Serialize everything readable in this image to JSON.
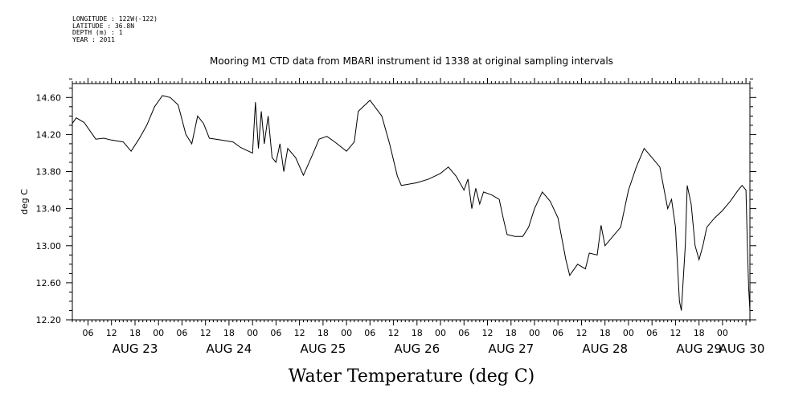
{
  "header": {
    "meta_lines": [
      "LONGITUDE : 122W(-122)",
      "LATITUDE : 36.8N",
      "DEPTH (m) : 1",
      "YEAR : 2011"
    ]
  },
  "chart_data": {
    "type": "line",
    "title": "Mooring M1 CTD data from MBARI instrument id 1338 at original sampling intervals",
    "xlabel": "Water Temperature (deg C)",
    "ylabel": "deg C",
    "xlim": [
      "2011-08-22T20:00",
      "2011-08-30T01:00"
    ],
    "ylim": [
      12.2,
      14.75
    ],
    "y_ticks": [
      "12.20",
      "12.60",
      "13.00",
      "13.40",
      "13.80",
      "14.20",
      "14.60"
    ],
    "x_hour_ticks": [
      "06",
      "12",
      "18",
      "00",
      "06",
      "12",
      "18",
      "00",
      "06",
      "12",
      "18",
      "00",
      "06",
      "12",
      "18",
      "00",
      "06",
      "12",
      "18",
      "00",
      "06",
      "12",
      "18",
      "00",
      "06",
      "12",
      "18",
      "00"
    ],
    "x_day_labels": [
      "AUG 23",
      "AUG 24",
      "AUG 25",
      "AUG 26",
      "AUG 27",
      "AUG 28",
      "AUG 29",
      "AUG 30"
    ],
    "grid": false,
    "series": [
      {
        "color": "#000000",
        "points": [
          [
            "2011-08-22T20:00",
            14.32
          ],
          [
            "2011-08-22T21:00",
            14.38
          ],
          [
            "2011-08-22T23:00",
            14.33
          ],
          [
            "2011-08-23T02:00",
            14.15
          ],
          [
            "2011-08-23T04:00",
            14.16
          ],
          [
            "2011-08-23T06:00",
            14.14
          ],
          [
            "2011-08-23T09:00",
            14.12
          ],
          [
            "2011-08-23T11:00",
            14.02
          ],
          [
            "2011-08-23T13:00",
            14.15
          ],
          [
            "2011-08-23T15:00",
            14.3
          ],
          [
            "2011-08-23T17:00",
            14.5
          ],
          [
            "2011-08-23T19:00",
            14.62
          ],
          [
            "2011-08-23T21:00",
            14.6
          ],
          [
            "2011-08-23T23:00",
            14.52
          ],
          [
            "2011-08-24T01:00",
            14.2
          ],
          [
            "2011-08-24T02:30",
            14.1
          ],
          [
            "2011-08-24T04:00",
            14.4
          ],
          [
            "2011-08-24T05:30",
            14.32
          ],
          [
            "2011-08-24T07:00",
            14.16
          ],
          [
            "2011-08-24T10:00",
            14.14
          ],
          [
            "2011-08-24T13:00",
            14.12
          ],
          [
            "2011-08-24T15:00",
            14.06
          ],
          [
            "2011-08-24T17:00",
            14.02
          ],
          [
            "2011-08-24T18:00",
            14.0
          ],
          [
            "2011-08-24T18:45",
            14.55
          ],
          [
            "2011-08-24T19:30",
            14.05
          ],
          [
            "2011-08-24T20:15",
            14.45
          ],
          [
            "2011-08-24T21:00",
            14.1
          ],
          [
            "2011-08-24T22:00",
            14.4
          ],
          [
            "2011-08-24T23:00",
            13.95
          ],
          [
            "2011-08-25T00:00",
            13.9
          ],
          [
            "2011-08-25T01:00",
            14.1
          ],
          [
            "2011-08-25T02:00",
            13.8
          ],
          [
            "2011-08-25T03:00",
            14.05
          ],
          [
            "2011-08-25T05:00",
            13.95
          ],
          [
            "2011-08-25T07:00",
            13.76
          ],
          [
            "2011-08-25T09:00",
            13.95
          ],
          [
            "2011-08-25T11:00",
            14.15
          ],
          [
            "2011-08-25T13:00",
            14.18
          ],
          [
            "2011-08-25T15:00",
            14.12
          ],
          [
            "2011-08-25T18:00",
            14.02
          ],
          [
            "2011-08-25T20:00",
            14.12
          ],
          [
            "2011-08-25T21:00",
            14.45
          ],
          [
            "2011-08-26T00:00",
            14.57
          ],
          [
            "2011-08-26T03:00",
            14.4
          ],
          [
            "2011-08-26T05:00",
            14.1
          ],
          [
            "2011-08-26T07:00",
            13.75
          ],
          [
            "2011-08-26T08:00",
            13.65
          ],
          [
            "2011-08-26T12:00",
            13.68
          ],
          [
            "2011-08-26T15:00",
            13.72
          ],
          [
            "2011-08-26T18:00",
            13.78
          ],
          [
            "2011-08-26T20:00",
            13.85
          ],
          [
            "2011-08-26T22:00",
            13.75
          ],
          [
            "2011-08-27T00:00",
            13.6
          ],
          [
            "2011-08-27T01:00",
            13.72
          ],
          [
            "2011-08-27T02:00",
            13.4
          ],
          [
            "2011-08-27T03:00",
            13.62
          ],
          [
            "2011-08-27T04:00",
            13.45
          ],
          [
            "2011-08-27T05:00",
            13.58
          ],
          [
            "2011-08-27T07:00",
            13.55
          ],
          [
            "2011-08-27T09:00",
            13.5
          ],
          [
            "2011-08-27T10:00",
            13.3
          ],
          [
            "2011-08-27T11:00",
            13.12
          ],
          [
            "2011-08-27T13:00",
            13.1
          ],
          [
            "2011-08-27T15:00",
            13.1
          ],
          [
            "2011-08-27T16:30",
            13.2
          ],
          [
            "2011-08-27T18:00",
            13.4
          ],
          [
            "2011-08-27T20:00",
            13.58
          ],
          [
            "2011-08-27T22:00",
            13.48
          ],
          [
            "2011-08-28T00:00",
            13.3
          ],
          [
            "2011-08-28T02:00",
            12.85
          ],
          [
            "2011-08-28T03:00",
            12.68
          ],
          [
            "2011-08-28T05:00",
            12.8
          ],
          [
            "2011-08-28T07:00",
            12.75
          ],
          [
            "2011-08-28T08:00",
            12.92
          ],
          [
            "2011-08-28T10:00",
            12.9
          ],
          [
            "2011-08-28T11:00",
            13.22
          ],
          [
            "2011-08-28T12:00",
            13.0
          ],
          [
            "2011-08-28T14:00",
            13.1
          ],
          [
            "2011-08-28T16:00",
            13.2
          ],
          [
            "2011-08-28T18:00",
            13.6
          ],
          [
            "2011-08-28T20:00",
            13.85
          ],
          [
            "2011-08-28T22:00",
            14.05
          ],
          [
            "2011-08-29T00:00",
            13.95
          ],
          [
            "2011-08-29T02:00",
            13.85
          ],
          [
            "2011-08-29T04:00",
            13.4
          ],
          [
            "2011-08-29T05:00",
            13.5
          ],
          [
            "2011-08-29T06:00",
            13.2
          ],
          [
            "2011-08-29T07:00",
            12.4
          ],
          [
            "2011-08-29T07:30",
            12.3
          ],
          [
            "2011-08-29T08:30",
            13.0
          ],
          [
            "2011-08-29T09:00",
            13.65
          ],
          [
            "2011-08-29T10:00",
            13.45
          ],
          [
            "2011-08-29T11:00",
            13.0
          ],
          [
            "2011-08-29T12:00",
            12.85
          ],
          [
            "2011-08-29T13:00",
            13.0
          ],
          [
            "2011-08-29T14:00",
            13.2
          ],
          [
            "2011-08-29T16:00",
            13.3
          ],
          [
            "2011-08-29T18:00",
            13.38
          ],
          [
            "2011-08-29T20:00",
            13.48
          ],
          [
            "2011-08-29T22:00",
            13.6
          ],
          [
            "2011-08-29T23:00",
            13.65
          ],
          [
            "2011-08-30T00:00",
            13.6
          ],
          [
            "2011-08-30T00:20",
            13.02
          ],
          [
            "2011-08-30T00:40",
            12.55
          ],
          [
            "2011-08-30T01:00",
            12.3
          ]
        ]
      }
    ]
  }
}
